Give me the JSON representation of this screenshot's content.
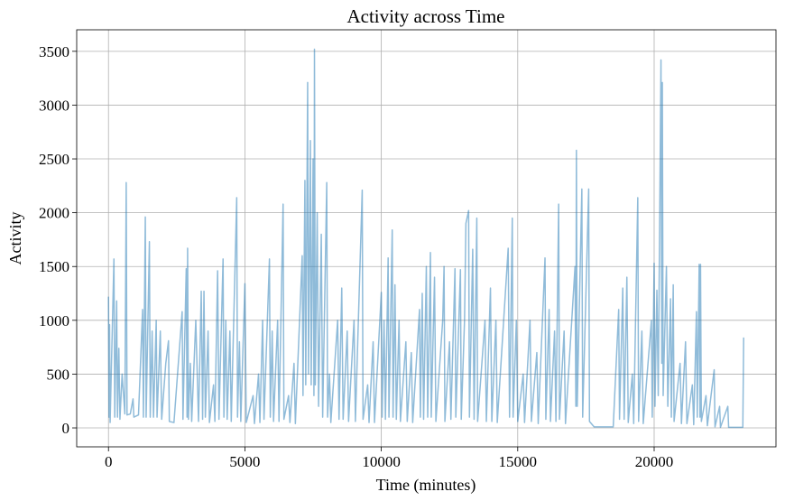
{
  "chart_data": {
    "type": "line",
    "title": "Activity across Time",
    "x_label": "Time (minutes)",
    "y_label": "Activity",
    "x": [
      0,
      20,
      40,
      60,
      200,
      230,
      300,
      330,
      380,
      420,
      500,
      600,
      650,
      680,
      800,
      900,
      930,
      1100,
      1250,
      1280,
      1350,
      1380,
      1500,
      1530,
      1600,
      1650,
      1750,
      1780,
      1900,
      1950,
      2100,
      2200,
      2230,
      2400,
      2700,
      2730,
      2850,
      2880,
      2900,
      2930,
      3000,
      3050,
      3200,
      3300,
      3400,
      3450,
      3500,
      3550,
      3650,
      3700,
      3850,
      3900,
      4000,
      4050,
      4200,
      4230,
      4300,
      4350,
      4450,
      4500,
      4700,
      4730,
      4800,
      4850,
      5000,
      5050,
      5300,
      5350,
      5500,
      5550,
      5650,
      5700,
      5900,
      5930,
      6000,
      6050,
      6200,
      6250,
      6400,
      6430,
      6600,
      6650,
      6800,
      6850,
      7100,
      7130,
      7200,
      7230,
      7300,
      7330,
      7400,
      7430,
      7500,
      7530,
      7550,
      7580,
      7650,
      7700,
      7800,
      7850,
      8000,
      8030,
      8100,
      8150,
      8400,
      8450,
      8550,
      8600,
      8750,
      8800,
      9000,
      9050,
      9300,
      9330,
      9500,
      9550,
      9700,
      9750,
      10000,
      10030,
      10100,
      10150,
      10250,
      10280,
      10400,
      10430,
      10500,
      10550,
      10650,
      10700,
      10900,
      10950,
      11100,
      11150,
      11400,
      11430,
      11500,
      11550,
      11650,
      11700,
      11800,
      11830,
      11950,
      12000,
      12250,
      12300,
      12330,
      12500,
      12550,
      12700,
      12730,
      12900,
      12930,
      13050,
      13100,
      13200,
      13230,
      13350,
      13400,
      13500,
      13530,
      13800,
      13850,
      14000,
      14050,
      14200,
      14250,
      14650,
      14700,
      14800,
      14830,
      14950,
      15000,
      15200,
      15250,
      15450,
      15500,
      15700,
      15750,
      16000,
      16030,
      16150,
      16200,
      16350,
      16400,
      16500,
      16530,
      16700,
      16750,
      17100,
      17130,
      17150,
      17180,
      17350,
      17380,
      17600,
      17630,
      17800,
      18500,
      18700,
      18730,
      18850,
      18900,
      19000,
      19050,
      19200,
      19250,
      19400,
      19430,
      19550,
      19600,
      19900,
      19930,
      20000,
      20030,
      20100,
      20150,
      20250,
      20280,
      20300,
      20330,
      20450,
      20500,
      20600,
      20630,
      20700,
      20730,
      20950,
      21000,
      21150,
      21200,
      21400,
      21450,
      21550,
      21580,
      21650,
      21680,
      21700,
      21730,
      21900,
      21950,
      22200,
      22230,
      22400,
      22430,
      22700,
      22730,
      23250,
      23280
    ],
    "values": [
      1220,
      100,
      960,
      50,
      1570,
      100,
      1180,
      100,
      740,
      80,
      500,
      130,
      2280,
      120,
      130,
      270,
      100,
      120,
      1100,
      100,
      1960,
      100,
      1730,
      100,
      900,
      100,
      1000,
      100,
      900,
      80,
      600,
      810,
      60,
      50,
      1080,
      80,
      1480,
      100,
      1670,
      80,
      600,
      60,
      1000,
      60,
      1270,
      80,
      1270,
      100,
      900,
      50,
      400,
      60,
      1460,
      80,
      1570,
      100,
      1000,
      80,
      900,
      60,
      2140,
      100,
      800,
      60,
      1340,
      50,
      300,
      40,
      500,
      50,
      1000,
      80,
      1570,
      100,
      900,
      60,
      1000,
      60,
      2080,
      80,
      300,
      50,
      600,
      40,
      1600,
      300,
      2300,
      400,
      3210,
      500,
      2670,
      400,
      2500,
      300,
      3520,
      400,
      2000,
      200,
      1800,
      100,
      2280,
      100,
      500,
      50,
      1000,
      80,
      1300,
      80,
      900,
      60,
      1000,
      60,
      2210,
      80,
      400,
      50,
      800,
      50,
      1260,
      100,
      1000,
      80,
      1580,
      100,
      1840,
      100,
      1330,
      80,
      1000,
      60,
      800,
      60,
      700,
      50,
      1100,
      100,
      1250,
      80,
      1500,
      100,
      1630,
      100,
      1400,
      60,
      1000,
      1500,
      60,
      800,
      80,
      1480,
      100,
      1470,
      80,
      1000,
      1900,
      2020,
      100,
      1660,
      80,
      1950,
      60,
      1000,
      60,
      1300,
      60,
      1000,
      50,
      1670,
      100,
      1950,
      100,
      1000,
      60,
      500,
      50,
      1000,
      60,
      700,
      40,
      1580,
      80,
      1100,
      60,
      900,
      60,
      2080,
      80,
      900,
      40,
      1500,
      200,
      2580,
      200,
      2220,
      100,
      2220,
      60,
      10,
      10,
      1100,
      80,
      1300,
      80,
      1400,
      50,
      500,
      40,
      2140,
      60,
      900,
      40,
      1000,
      100,
      1530,
      200,
      1280,
      300,
      3420,
      600,
      3210,
      300,
      1500,
      200,
      1200,
      100,
      1330,
      60,
      600,
      40,
      800,
      40,
      400,
      30,
      1080,
      100,
      1520,
      100,
      1520,
      60,
      300,
      20,
      540,
      10,
      200,
      5,
      200,
      5,
      5,
      840
    ],
    "color": "#1f77b4",
    "alpha": 0.5,
    "grid": true,
    "xlim": [
      -1165,
      24465
    ],
    "xticks": [
      0,
      5000,
      10000,
      15000,
      20000
    ],
    "ylim": [
      -176,
      3700
    ],
    "yticks": [
      0,
      500,
      1000,
      1500,
      2000,
      2500,
      3000,
      3500
    ]
  }
}
